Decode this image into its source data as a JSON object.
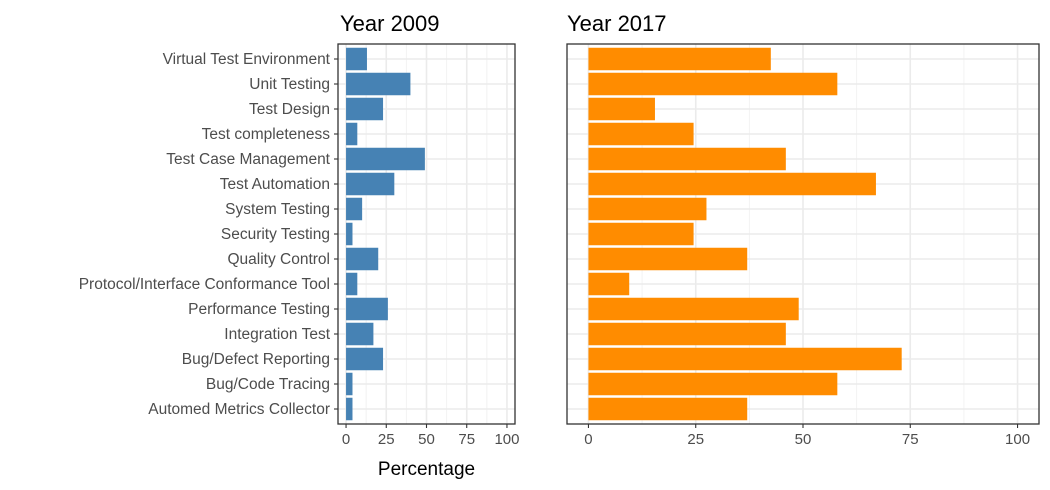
{
  "chart_data": [
    {
      "type": "bar",
      "orientation": "horizontal",
      "title": "Year 2009",
      "xlabel": "Percentage",
      "ylabel": "",
      "xlim": [
        0,
        100
      ],
      "xticks": [
        0,
        25,
        50,
        75,
        100
      ],
      "grid": true,
      "color": "#4682B4",
      "categories": [
        "Virtual Test Environment",
        "Unit Testing",
        "Test Design",
        "Test completeness",
        "Test Case Management",
        "Test Automation",
        "System Testing",
        "Security Testing",
        "Quality Control",
        "Protocol/Interface Conformance Tool",
        "Performance Testing",
        "Integration Test",
        "Bug/Defect Reporting",
        "Bug/Code Tracing",
        "Automed Metrics Collector"
      ],
      "values": [
        13,
        40,
        23,
        7,
        49,
        30,
        10,
        4,
        20,
        7,
        26,
        17,
        23,
        4,
        4
      ]
    },
    {
      "type": "bar",
      "orientation": "horizontal",
      "title": "Year 2017",
      "xlabel": "",
      "ylabel": "",
      "xlim": [
        0,
        100
      ],
      "xticks": [
        0,
        25,
        50,
        75,
        100
      ],
      "grid": true,
      "color": "#FF8C00",
      "categories": [
        "Virtual Test Environment",
        "Unit Testing",
        "Test Design",
        "Test completeness",
        "Test Case Management",
        "Test Automation",
        "System Testing",
        "Security Testing",
        "Quality Control",
        "Protocol/Interface Conformance Tool",
        "Performance Testing",
        "Integration Test",
        "Bug/Defect Reporting",
        "Bug/Code Tracing",
        "Automed Metrics Collector"
      ],
      "values": [
        42.5,
        58,
        15.5,
        24.5,
        46,
        67,
        27.5,
        24.5,
        37,
        9.5,
        49,
        46,
        73,
        58,
        37
      ]
    }
  ]
}
